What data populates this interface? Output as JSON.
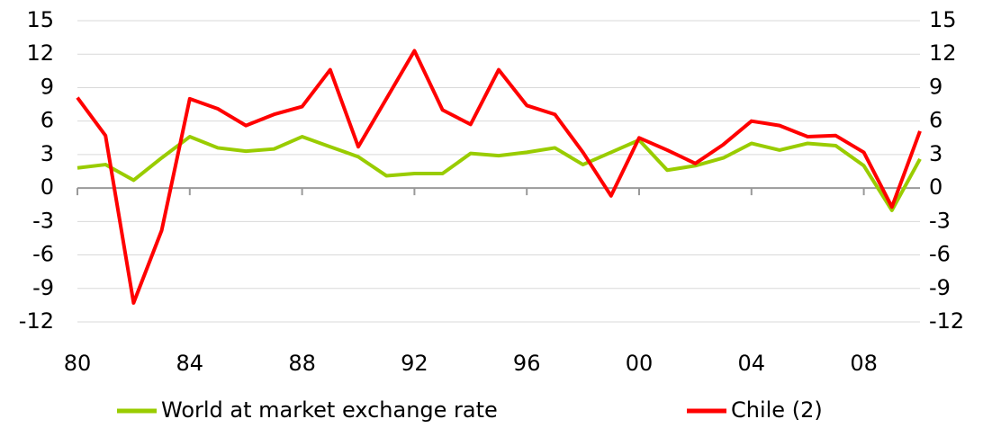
{
  "chart_data": {
    "type": "line",
    "categories": [
      "80",
      null,
      null,
      null,
      "84",
      null,
      null,
      null,
      "88",
      null,
      null,
      null,
      "92",
      null,
      null,
      null,
      "96",
      null,
      null,
      null,
      "00",
      null,
      null,
      null,
      "04",
      null,
      null,
      null,
      "08",
      null,
      null
    ],
    "series": [
      {
        "name": "World at market exchange rate",
        "color": "#99cc00",
        "values": [
          1.8,
          2.1,
          0.7,
          2.7,
          4.6,
          3.6,
          3.3,
          3.5,
          4.6,
          3.7,
          2.8,
          1.1,
          1.3,
          1.3,
          3.1,
          2.9,
          3.2,
          3.6,
          2.1,
          3.2,
          4.3,
          1.6,
          2.0,
          2.7,
          4.0,
          3.4,
          4.0,
          3.8,
          2.0,
          -2.0,
          2.6
        ]
      },
      {
        "name": "Chile (2)",
        "color": "#ff0000",
        "values": [
          8.1,
          4.7,
          -10.3,
          -3.8,
          8.0,
          7.1,
          5.6,
          6.6,
          7.3,
          10.6,
          3.7,
          8.0,
          12.3,
          7.0,
          5.7,
          10.6,
          7.4,
          6.6,
          3.2,
          -0.7,
          4.5,
          3.4,
          2.2,
          3.9,
          6.0,
          5.6,
          4.6,
          4.7,
          3.2,
          -1.7,
          5.1
        ]
      }
    ],
    "ylim": [
      -12,
      15
    ],
    "yticks": [
      -12,
      -9,
      -6,
      -3,
      0,
      3,
      6,
      9,
      12,
      15
    ],
    "y2lim": [
      -12,
      15
    ],
    "y2ticks": [
      -12,
      -9,
      -6,
      -3,
      0,
      3,
      6,
      9,
      12,
      15
    ],
    "grid": true,
    "legend": "bottom"
  }
}
